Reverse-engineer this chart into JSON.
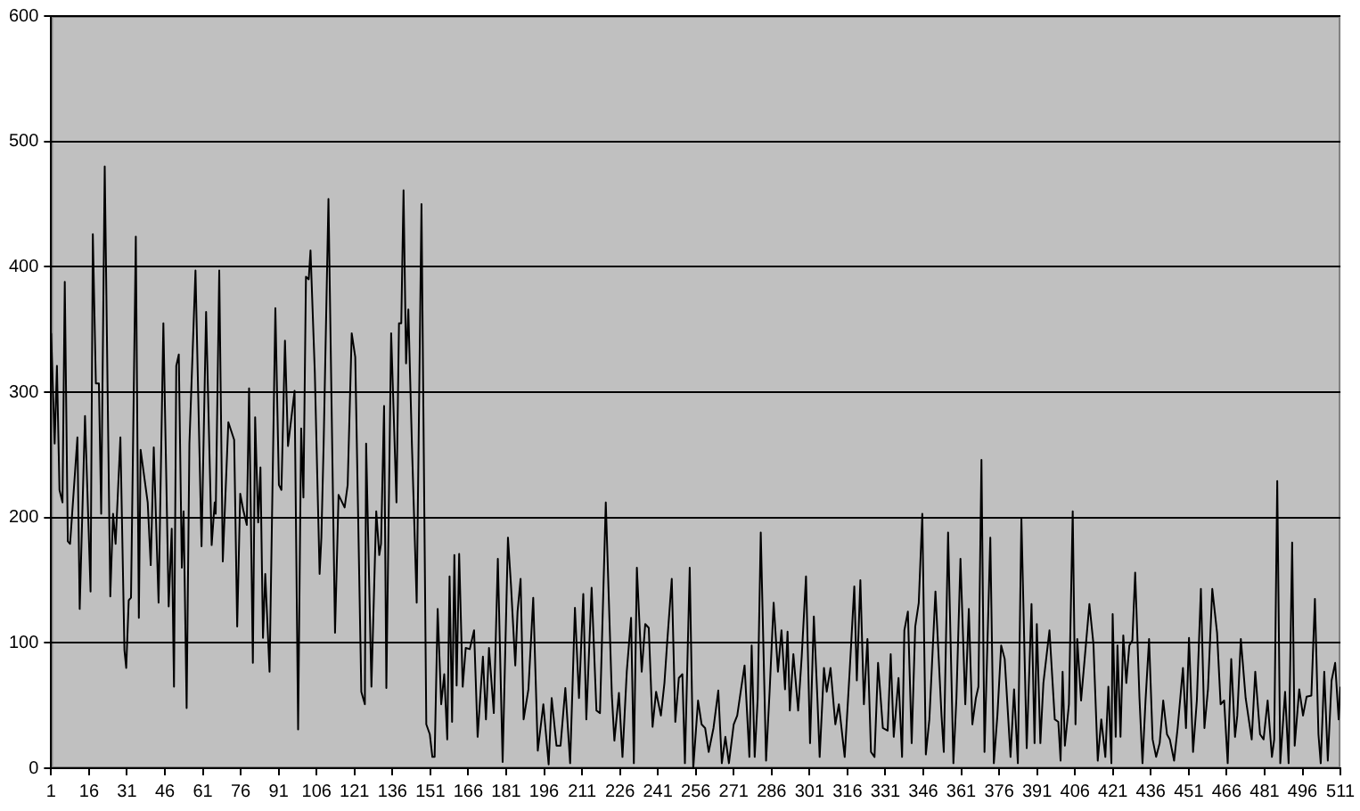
{
  "chart_data": {
    "type": "line",
    "grid": "y",
    "legend": false,
    "marker": "none",
    "line_style": "solid",
    "xlim": [
      1,
      511
    ],
    "xticks": [
      1,
      16,
      31,
      46,
      61,
      76,
      91,
      106,
      121,
      136,
      151,
      166,
      181,
      196,
      211,
      226,
      241,
      256,
      271,
      286,
      301,
      316,
      331,
      346,
      361,
      376,
      391,
      406,
      421,
      436,
      451,
      466,
      481,
      496,
      511
    ],
    "ylim": [
      0,
      600
    ],
    "yticks": [
      0,
      100,
      200,
      300,
      400,
      500,
      600
    ],
    "series": [
      {
        "color": "#000000",
        "x": [
          1,
          2.4,
          3.3,
          4.3,
          5.5,
          6.4,
          7.6,
          8.5,
          11.4,
          12.3,
          14.4,
          16.6,
          17.5,
          18.7,
          19.9,
          20.8,
          22.2,
          24.4,
          25.5,
          26.5,
          28.4,
          30,
          30.7,
          31.7,
          32.6,
          34.5,
          35.7,
          36.4,
          39.2,
          40.4,
          41.6,
          43.5,
          45.4,
          47.5,
          48.7,
          49.6,
          50.5,
          51.5,
          52.7,
          53.4,
          54.6,
          55.7,
          58.1,
          60.5,
          62.3,
          64.5,
          65.7,
          66.1,
          67.5,
          68.9,
          71.1,
          73.4,
          74.6,
          75.8,
          77,
          78.4,
          79.3,
          80.8,
          81.7,
          82.9,
          83.8,
          84.8,
          85.7,
          87.4,
          89.7,
          91.1,
          92.1,
          93.5,
          94.7,
          97.3,
          98.7,
          99.9,
          100.8,
          101.8,
          102.9,
          103.6,
          105.3,
          107.2,
          107.9,
          108.8,
          110.7,
          113.3,
          114.7,
          117.1,
          118.3,
          119.9,
          121.3,
          123.7,
          125.1,
          125.6,
          127.7,
          129.6,
          130.8,
          131.5,
          132.7,
          133.6,
          135.5,
          137.6,
          138.6,
          139.5,
          140.4,
          141.4,
          142.3,
          143.7,
          145.6,
          147.5,
          149.4,
          150.8,
          151.8,
          152.7,
          153.9,
          155.3,
          156.5,
          157.7,
          158.6,
          159.6,
          160.5,
          161.4,
          162.4,
          163.8,
          165,
          166.6,
          168.3,
          169.7,
          171.8,
          173,
          174.2,
          176.1,
          177.7,
          179.6,
          181.7,
          182.9,
          184.6,
          185.5,
          186.7,
          187.9,
          189.8,
          191.7,
          193.5,
          195.7,
          197.8,
          199,
          200.9,
          202.5,
          204.4,
          206.3,
          208.2,
          209.8,
          211.5,
          212.7,
          214.8,
          216.7,
          218.1,
          220.4,
          222.8,
          223.8,
          225.6,
          227,
          228.7,
          230.4,
          231.5,
          232.7,
          234.6,
          236,
          237.4,
          238.9,
          240.3,
          242.2,
          243.6,
          244.6,
          246.5,
          247.9,
          249.3,
          250.7,
          251.7,
          253.6,
          255,
          256.9,
          258.3,
          259.7,
          261.1,
          263,
          264.9,
          266.3,
          267.7,
          269.1,
          271,
          272.4,
          273.9,
          275.3,
          277.2,
          278.1,
          279.3,
          280.5,
          281.7,
          283.8,
          285.2,
          286.8,
          288.5,
          289.9,
          291.3,
          292.3,
          293.2,
          294.6,
          296.5,
          297.9,
          299.6,
          301.2,
          302.7,
          304.1,
          305,
          306.7,
          307.8,
          309.3,
          311.2,
          312.6,
          314.9,
          316.8,
          318.7,
          319.7,
          321.1,
          322.5,
          323.9,
          325.3,
          326.7,
          328.1,
          330,
          331.9,
          333.1,
          334.3,
          336.2,
          337.6,
          338.5,
          339.9,
          341.4,
          342.8,
          344.2,
          345.6,
          347,
          348.4,
          350.8,
          353.2,
          354.1,
          355.8,
          357.9,
          359.1,
          360.7,
          362.6,
          364,
          365.4,
          366.8,
          367.8,
          369,
          370.2,
          372.5,
          373.9,
          375.3,
          376.8,
          378.2,
          380.5,
          381.9,
          383.4,
          384.8,
          386.9,
          388.8,
          390,
          390.9,
          392.3,
          393.5,
          395.9,
          398,
          399.4,
          400.3,
          401.1,
          402,
          403.6,
          405.1,
          406.2,
          406.9,
          408.4,
          411.7,
          413.3,
          415,
          416.4,
          418,
          419.2,
          420.4,
          420.9,
          422.1,
          422.8,
          424,
          425.1,
          426.3,
          427.5,
          428.7,
          429.8,
          431.5,
          432.7,
          433.9,
          435.3,
          436.7,
          438.1,
          439.5,
          440.9,
          442.4,
          443.5,
          445.2,
          446.6,
          448.7,
          449.9,
          451.1,
          452.7,
          454.2,
          455.8,
          457.2,
          458.6,
          460.3,
          462.2,
          463.6,
          465,
          466.4,
          467.8,
          469.3,
          470.2,
          471.6,
          473.5,
          475.9,
          477.3,
          479.2,
          480.6,
          482.2,
          483.9,
          484.8,
          486,
          487.2,
          489.1,
          490.5,
          491.9,
          492.9,
          494.7,
          496.2,
          497.6,
          499.5,
          500.9,
          502.3,
          503.2,
          504.6,
          506,
          507.5,
          508.9,
          510.3,
          511
        ],
        "values": [
          347,
          259,
          321,
          222,
          212,
          388,
          181,
          179,
          264,
          127,
          281,
          141,
          426,
          307,
          307,
          203,
          480,
          137,
          203,
          179,
          264,
          94,
          80,
          134,
          136,
          424,
          120,
          254,
          212,
          162,
          256,
          132,
          355,
          129,
          191,
          65,
          321,
          330,
          160,
          205,
          48,
          259,
          397,
          177,
          364,
          178,
          212,
          203,
          397,
          165,
          276,
          262,
          113,
          219,
          206,
          194,
          303,
          84,
          280,
          196,
          240,
          104,
          155,
          77,
          367,
          226,
          222,
          341,
          257,
          301,
          31,
          271,
          216,
          392,
          390,
          413,
          316,
          155,
          184,
          259,
          454,
          108,
          218,
          208,
          226,
          347,
          328,
          61,
          51,
          259,
          65,
          205,
          170,
          179,
          289,
          64,
          347,
          212,
          355,
          355,
          461,
          323,
          366,
          259,
          132,
          450,
          35,
          27,
          9,
          9,
          127,
          51,
          75,
          23,
          153,
          37,
          170,
          66,
          171,
          65,
          96,
          95,
          110,
          25,
          89,
          39,
          96,
          44,
          167,
          5,
          184,
          146,
          82,
          125,
          151,
          39,
          63,
          136,
          14,
          51,
          3,
          56,
          18,
          18,
          64,
          4,
          128,
          56,
          139,
          39,
          144,
          46,
          44,
          212,
          58,
          22,
          60,
          9,
          77,
          120,
          4,
          160,
          77,
          115,
          112,
          33,
          61,
          42,
          68,
          98,
          151,
          37,
          72,
          75,
          4,
          160,
          0,
          54,
          35,
          32,
          13,
          32,
          62,
          4,
          25,
          4,
          35,
          42,
          63,
          82,
          9,
          98,
          9,
          56,
          188,
          6,
          61,
          132,
          77,
          110,
          63,
          109,
          46,
          91,
          46,
          89,
          153,
          20,
          121,
          56,
          9,
          80,
          61,
          80,
          35,
          51,
          9,
          75,
          145,
          70,
          150,
          51,
          103,
          13,
          9,
          84,
          32,
          30,
          91,
          25,
          72,
          9,
          110,
          125,
          20,
          113,
          132,
          203,
          11,
          39,
          141,
          42,
          13,
          188,
          4,
          56,
          167,
          51,
          127,
          35,
          56,
          65,
          246,
          13,
          184,
          4,
          42,
          98,
          87,
          9,
          63,
          4,
          199,
          16,
          131,
          20,
          115,
          20,
          68,
          110,
          39,
          37,
          6,
          77,
          18,
          51,
          205,
          35,
          103,
          54,
          131,
          99,
          6,
          39,
          9,
          65,
          4,
          123,
          25,
          98,
          25,
          106,
          68,
          98,
          102,
          156,
          56,
          4,
          54,
          103,
          23,
          9,
          20,
          54,
          27,
          23,
          6,
          32,
          80,
          32,
          104,
          13,
          54,
          143,
          32,
          63,
          143,
          108,
          51,
          54,
          4,
          87,
          25,
          42,
          103,
          56,
          23,
          77,
          27,
          23,
          54,
          9,
          23,
          229,
          4,
          61,
          4,
          180,
          18,
          63,
          42,
          57,
          58,
          135,
          27,
          4,
          77,
          6,
          70,
          84,
          39,
          65
        ]
      }
    ]
  }
}
